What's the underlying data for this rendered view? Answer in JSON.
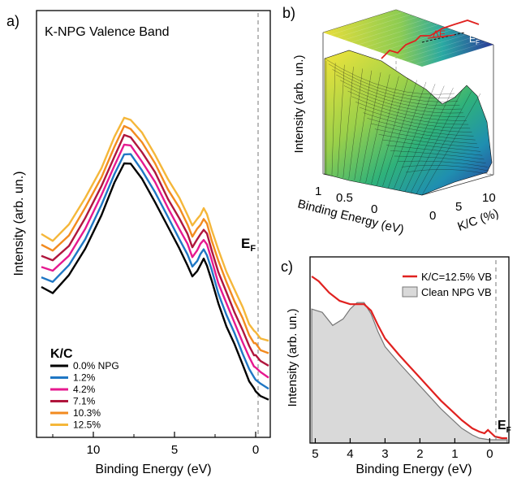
{
  "chart_data": [
    {
      "panel_label": "a)",
      "type": "line",
      "title": "K-NPG Valence Band",
      "xlabel": "Binding Energy (eV)",
      "ylabel": "Intensity (arb. un.)",
      "x_reversed": true,
      "xlim": [
        13.5,
        -0.9
      ],
      "xticks": [
        10,
        5,
        0
      ],
      "ef_label": "E",
      "ef_sub": "F",
      "ef_x": 0,
      "legend_title": "K/C",
      "legend_placement": "bottom-left",
      "grid": false,
      "series": [
        {
          "name": "0.0% NPG",
          "color": "#000000",
          "offset": 0
        },
        {
          "name": "1.2%",
          "color": "#1f77c4",
          "offset": 1
        },
        {
          "name": "4.2%",
          "color": "#e6198f",
          "offset": 2
        },
        {
          "name": "7.1%",
          "color": "#b0163d",
          "offset": 3
        },
        {
          "name": "10.3%",
          "color": "#f28a1f",
          "offset": 4
        },
        {
          "name": "12.5%",
          "color": "#f5b73a",
          "offset": 5
        }
      ],
      "base_profile": {
        "x": [
          13.2,
          12.5,
          11.5,
          10.5,
          9.5,
          8.7,
          8.1,
          7.7,
          7.0,
          6.2,
          5.4,
          4.7,
          4.2,
          3.9,
          3.6,
          3.4,
          3.2,
          3.0,
          2.7,
          2.3,
          1.8,
          1.3,
          0.8,
          0.4,
          0.1,
          0.0,
          -0.3,
          -0.8
        ],
        "y": [
          0.1,
          0.06,
          0.18,
          0.38,
          0.62,
          0.85,
          1.0,
          0.99,
          0.88,
          0.72,
          0.53,
          0.38,
          0.26,
          0.17,
          0.22,
          0.26,
          0.3,
          0.26,
          0.14,
          -0.02,
          -0.18,
          -0.32,
          -0.46,
          -0.58,
          -0.64,
          -0.65,
          -0.69,
          -0.72
        ]
      }
    },
    {
      "panel_label": "b)",
      "type": "surface",
      "xlabel": "Binding Energy (eV)",
      "ylabel": "Intensity (arb. un.)",
      "zlabel": "K/C (%)",
      "x_ticks": [
        "1",
        "0.5",
        "0"
      ],
      "z_ticks": [
        "0",
        "5",
        "10"
      ],
      "annotation_delta": "ΔE",
      "annotation_ef": "E",
      "annotation_ef_sub": "F",
      "colormap": [
        "#2b3a98",
        "#1f8fb0",
        "#2fb27a",
        "#9ad04a",
        "#f2e43a"
      ]
    },
    {
      "panel_label": "c)",
      "type": "area",
      "xlabel": "Binding Energy (eV)",
      "ylabel": "Intensity (arb. un.)",
      "x_reversed": true,
      "xlim": [
        5.15,
        -0.55
      ],
      "xticks": [
        5,
        4,
        3,
        2,
        1,
        0
      ],
      "ef_label": "E",
      "ef_sub": "F",
      "ef_x": 0,
      "legend_placement": "top-right",
      "series": [
        {
          "name": "K/C=12.5% VB",
          "color": "#e0211f",
          "style": "line",
          "x": [
            5.1,
            4.9,
            4.6,
            4.3,
            4.0,
            3.8,
            3.6,
            3.4,
            3.2,
            3.0,
            2.8,
            2.6,
            2.3,
            2.0,
            1.7,
            1.4,
            1.1,
            0.8,
            0.5,
            0.3,
            0.15,
            0.05,
            -0.05,
            -0.15,
            -0.35,
            -0.5
          ],
          "y": [
            1.0,
            0.97,
            0.9,
            0.85,
            0.83,
            0.83,
            0.83,
            0.79,
            0.7,
            0.62,
            0.57,
            0.52,
            0.45,
            0.38,
            0.31,
            0.24,
            0.18,
            0.12,
            0.07,
            0.05,
            0.04,
            0.06,
            0.04,
            0.02,
            0.01,
            0.01
          ]
        },
        {
          "name": "Clean NPG VB",
          "color": "#aaaaaa",
          "style": "filled",
          "x": [
            5.1,
            4.8,
            4.5,
            4.2,
            4.0,
            3.8,
            3.6,
            3.4,
            3.2,
            3.0,
            2.8,
            2.6,
            2.3,
            2.0,
            1.7,
            1.4,
            1.1,
            0.8,
            0.5,
            0.3,
            0.0,
            -0.3,
            -0.5
          ],
          "y": [
            0.8,
            0.78,
            0.7,
            0.74,
            0.8,
            0.84,
            0.84,
            0.77,
            0.66,
            0.57,
            0.52,
            0.47,
            0.4,
            0.33,
            0.26,
            0.19,
            0.13,
            0.07,
            0.03,
            0.01,
            0.0,
            0.0,
            0.0
          ]
        }
      ]
    }
  ]
}
